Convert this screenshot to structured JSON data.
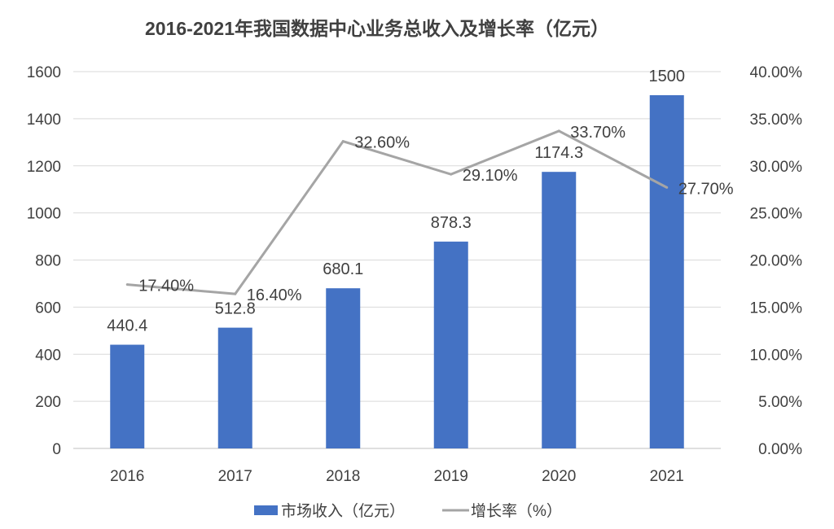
{
  "chart_data": {
    "type": "bar+line",
    "title": "2016-2021年我国数据中心业务总收入及增长率（亿元）",
    "categories": [
      "2016",
      "2017",
      "2018",
      "2019",
      "2020",
      "2021"
    ],
    "series": [
      {
        "name": "市场收入（亿元）",
        "type": "bar",
        "axis": "left",
        "color": "#4472C4",
        "values": [
          440.4,
          512.8,
          680.1,
          878.3,
          1174.3,
          1500
        ],
        "labels": [
          "440.4",
          "512.8",
          "680.1",
          "878.3",
          "1174.3",
          "1500"
        ]
      },
      {
        "name": "增长率（%）",
        "type": "line",
        "axis": "right",
        "color": "#A5A5A5",
        "values": [
          17.4,
          16.4,
          32.6,
          29.1,
          33.7,
          27.7
        ],
        "labels": [
          "17.40%",
          "16.40%",
          "32.60%",
          "29.10%",
          "33.70%",
          "27.70%"
        ]
      }
    ],
    "y_left": {
      "range": [
        0,
        1600
      ],
      "ticks": [
        "0",
        "200",
        "400",
        "600",
        "800",
        "1000",
        "1200",
        "1400",
        "1600"
      ]
    },
    "y_right": {
      "range": [
        0,
        40
      ],
      "ticks": [
        "0.00%",
        "5.00%",
        "10.00%",
        "15.00%",
        "20.00%",
        "25.00%",
        "30.00%",
        "35.00%",
        "40.00%"
      ]
    },
    "grid": true,
    "legend": "bottom"
  }
}
